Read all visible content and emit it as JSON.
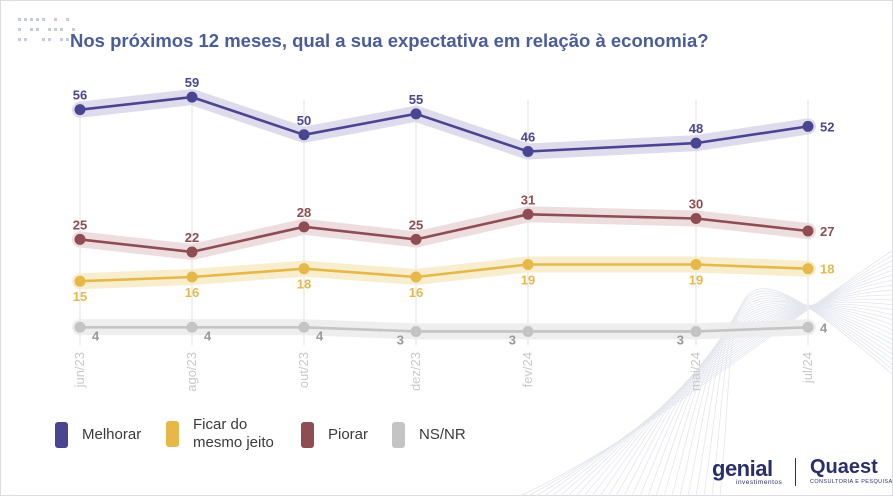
{
  "title": "Nos próximos 12 meses, qual a sua expectativa em relação à economia?",
  "chart_data": {
    "type": "line",
    "title": "Nos próximos 12 meses, qual a sua expectativa em relação à economia?",
    "x_labels": [
      "jun/23",
      "ago/23",
      "out/23",
      "dez/23",
      "fev/24",
      "mai/24",
      "jul/24"
    ],
    "x_month_index": [
      0,
      2,
      4,
      6,
      8,
      11,
      13
    ],
    "ylim": [
      0,
      65
    ],
    "grid": "vertical",
    "legend_position": "bottom-left",
    "series": [
      {
        "name": "Melhorar",
        "color": "#4a4590",
        "band_color": "#d9d7ea",
        "values": [
          56,
          59,
          50,
          55,
          46,
          48,
          52
        ]
      },
      {
        "name": "Ficar do mesmo jeito",
        "color": "#e6b84a",
        "band_color": "#f7ecc9",
        "values": [
          15,
          16,
          18,
          16,
          19,
          19,
          18
        ]
      },
      {
        "name": "Piorar",
        "color": "#8e4d52",
        "band_color": "#ecd9da",
        "values": [
          25,
          22,
          28,
          25,
          31,
          30,
          27
        ]
      },
      {
        "name": "NS/NR",
        "color": "#c4c4c4",
        "band_color": "#ececec",
        "values": [
          4,
          4,
          4,
          3,
          3,
          3,
          4
        ]
      }
    ]
  },
  "legend": [
    {
      "label": "Melhorar",
      "color": "#4a4590"
    },
    {
      "label": "Ficar do mesmo jeito",
      "color": "#e6b84a"
    },
    {
      "label": "Piorar",
      "color": "#8e4d52"
    },
    {
      "label": "NS/NR",
      "color": "#c4c4c4"
    }
  ],
  "logos": {
    "genial": "genial",
    "genial_sub": "investimentos",
    "quaest": "Quaest",
    "quaest_sub": "CONSULTORIA E PESQUISA"
  }
}
